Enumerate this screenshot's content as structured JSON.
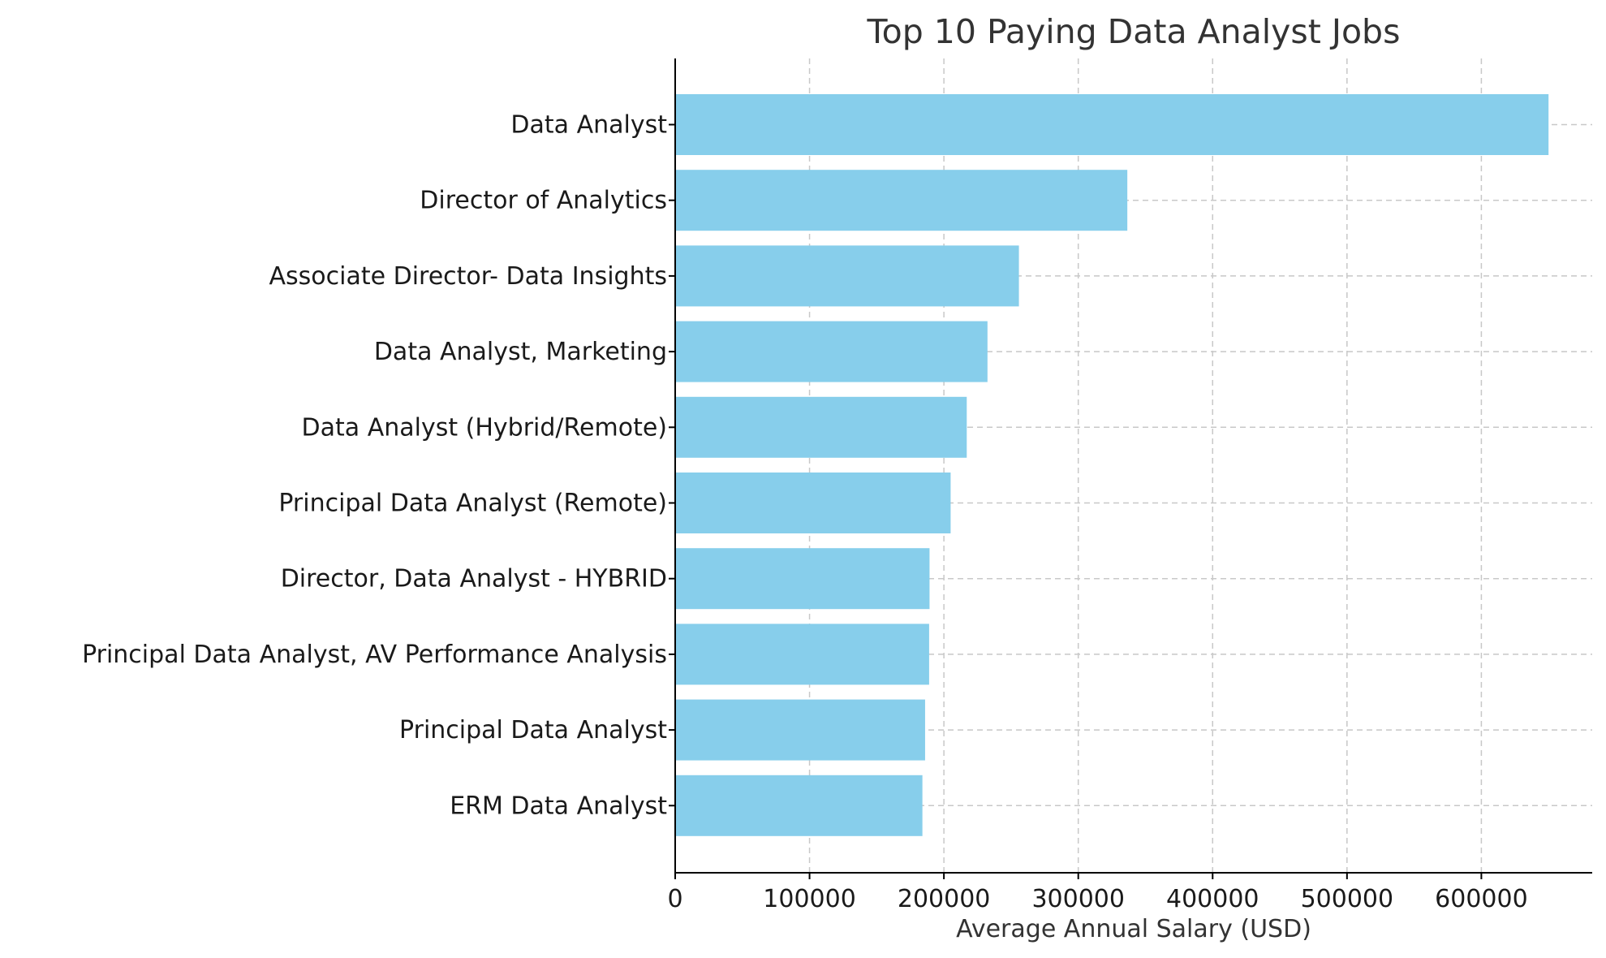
{
  "chart_data": {
    "type": "bar",
    "orientation": "horizontal",
    "title": "Top 10 Paying Data Analyst Jobs",
    "xlabel": "Average Annual Salary (USD)",
    "ylabel": "",
    "categories": [
      "Data Analyst",
      "Director of Analytics",
      "Associate Director- Data Insights",
      "Data Analyst, Marketing",
      "Data Analyst (Hybrid/Remote)",
      "Principal Data Analyst (Remote)",
      "Director, Data Analyst - HYBRID",
      "Principal Data Analyst, AV Performance Analysis",
      "Principal Data Analyst",
      "ERM Data Analyst"
    ],
    "values": [
      650000,
      336500,
      255829.5,
      232423,
      217000,
      205000,
      189309,
      189000,
      186000,
      184000
    ],
    "xlim": [
      0,
      682500
    ],
    "xticks": [
      "0",
      "100000",
      "200000",
      "300000",
      "400000",
      "500000",
      "600000"
    ],
    "bar_color": "#87CEEB",
    "grid": true
  }
}
